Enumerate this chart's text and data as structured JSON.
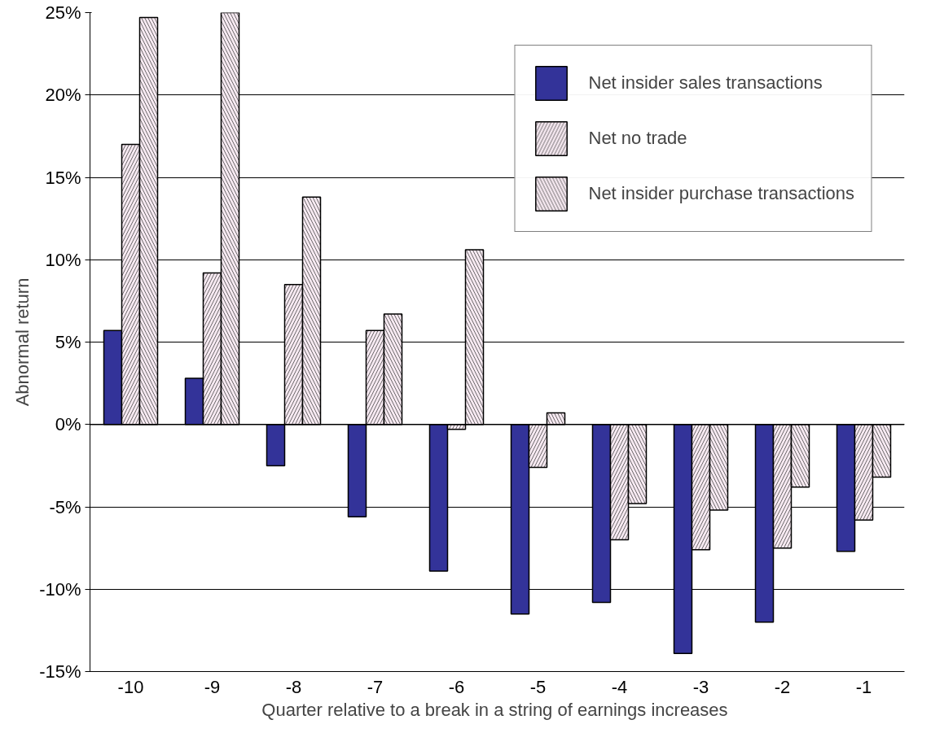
{
  "chart_data": {
    "type": "bar",
    "xlabel": "Quarter relative to a break in a string of  earnings increases",
    "ylabel": "Abnormal return",
    "categories": [
      "-10",
      "-9",
      "-8",
      "-7",
      "-6",
      "-5",
      "-4",
      "-3",
      "-2",
      "-1"
    ],
    "series": [
      {
        "name": "Net insider sales transactions",
        "color": "#333399",
        "values": [
          5.7,
          2.8,
          -2.5,
          -5.6,
          -8.9,
          -11.5,
          -10.8,
          -13.9,
          -12.0,
          -7.7
        ]
      },
      {
        "name": "Net no trade",
        "color": "#f6e9f1",
        "values": [
          17.0,
          9.2,
          8.5,
          5.7,
          -0.3,
          -2.6,
          -7.0,
          -7.6,
          -7.5,
          -5.8
        ]
      },
      {
        "name": "Net insider purchase transactions",
        "color": "#f6e9f1",
        "values": [
          24.7,
          25.0,
          13.8,
          6.7,
          10.6,
          0.7,
          -4.8,
          -5.2,
          -3.8,
          -3.2
        ]
      }
    ],
    "ylim": [
      -15,
      25
    ],
    "yticks": [
      {
        "value": -15,
        "label": "-15%"
      },
      {
        "value": -10,
        "label": "-10%"
      },
      {
        "value": -5,
        "label": "-5%"
      },
      {
        "value": 0,
        "label": "0%"
      },
      {
        "value": 5,
        "label": "5%"
      },
      {
        "value": 10,
        "label": "10%"
      },
      {
        "value": 15,
        "label": "15%"
      },
      {
        "value": 20,
        "label": "20%"
      },
      {
        "value": 25,
        "label": "25%"
      }
    ],
    "grid": "y",
    "legend": "top right"
  }
}
